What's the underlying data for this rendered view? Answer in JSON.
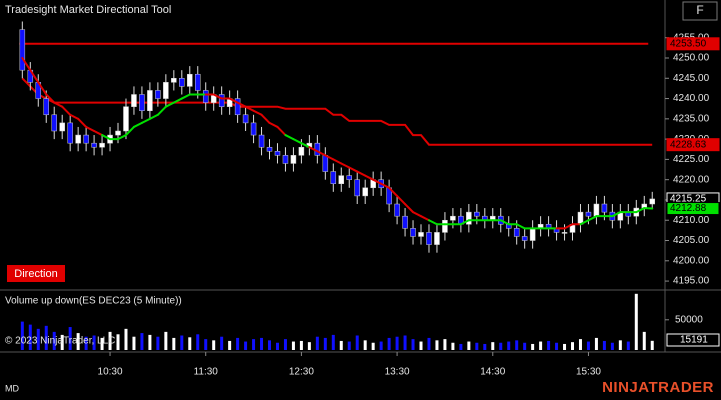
{
  "ui": {
    "title": "Tradesight Market Directional Tool",
    "button": "F",
    "copyright": "© 2023 NinjaTrader, LLC",
    "tag": "MD",
    "logo": "NINJATRADER"
  },
  "chart_data": [
    {
      "type": "candlestick",
      "indicator_label": "Direction",
      "x": [
        575,
        580,
        585,
        590,
        595,
        600,
        605,
        610,
        615,
        620,
        625,
        630,
        635,
        640,
        645,
        650,
        655,
        660,
        665,
        670,
        675,
        680,
        685,
        690,
        695,
        700,
        705,
        710,
        715,
        720,
        725,
        730,
        735,
        740,
        745,
        750,
        755,
        760,
        765,
        770,
        775,
        780,
        785,
        790,
        795,
        800,
        805,
        810,
        815,
        820,
        825,
        830,
        835,
        840,
        845,
        850,
        855,
        860,
        865,
        870,
        875,
        880,
        885,
        890,
        895,
        900,
        905,
        910,
        915,
        920,
        925,
        930,
        935,
        940,
        945,
        950,
        955,
        960,
        965,
        970
      ],
      "open": [
        4257,
        4247,
        4244,
        4240,
        4236,
        4232,
        4234,
        4229,
        4231,
        4229,
        4228,
        4229,
        4231,
        4232,
        4238,
        4241,
        4237,
        4242,
        4240,
        4244,
        4245,
        4243,
        4246,
        4242,
        4239,
        4241,
        4238,
        4240,
        4236,
        4234,
        4231,
        4228,
        4227,
        4226,
        4224,
        4226,
        4228,
        4229,
        4226,
        4222,
        4219,
        4221,
        4220,
        4216,
        4218,
        4220,
        4218,
        4214,
        4211,
        4208,
        4206,
        4207,
        4204,
        4207,
        4210,
        4211,
        4209,
        4212,
        4211,
        4210,
        4211,
        4209,
        4208,
        4206,
        4205,
        4208,
        4209,
        4208,
        4207,
        4207,
        4209,
        4212,
        4211,
        4214,
        4212,
        4210,
        4212,
        4211,
        4213,
        4214
      ],
      "high": [
        4259,
        4249,
        4246,
        4242,
        4238,
        4236,
        4236,
        4233,
        4233,
        4231,
        4231,
        4233,
        4234,
        4240,
        4243,
        4243,
        4244,
        4244,
        4246,
        4247,
        4247,
        4248,
        4248,
        4244,
        4243,
        4243,
        4242,
        4242,
        4238,
        4236,
        4233,
        4230,
        4229,
        4228,
        4228,
        4230,
        4231,
        4231,
        4228,
        4224,
        4223,
        4223,
        4222,
        4220,
        4222,
        4222,
        4220,
        4216,
        4213,
        4210,
        4209,
        4209,
        4209,
        4212,
        4213,
        4213,
        4214,
        4214,
        4213,
        4213,
        4213,
        4211,
        4210,
        4208,
        4210,
        4211,
        4211,
        4210,
        4209,
        4211,
        4214,
        4214,
        4216,
        4216,
        4214,
        4214,
        4214,
        4215,
        4216,
        4217
      ],
      "low": [
        4245,
        4242,
        4238,
        4234,
        4230,
        4230,
        4227,
        4227,
        4227,
        4226,
        4226,
        4227,
        4229,
        4230,
        4236,
        4235,
        4235,
        4238,
        4238,
        4242,
        4241,
        4241,
        4240,
        4237,
        4237,
        4236,
        4236,
        4234,
        4232,
        4229,
        4226,
        4225,
        4224,
        4222,
        4222,
        4224,
        4226,
        4224,
        4220,
        4217,
        4217,
        4218,
        4214,
        4214,
        4216,
        4216,
        4212,
        4209,
        4206,
        4204,
        4204,
        4202,
        4202,
        4205,
        4208,
        4207,
        4207,
        4209,
        4208,
        4208,
        4207,
        4206,
        4204,
        4203,
        4203,
        4206,
        4206,
        4205,
        4205,
        4205,
        4207,
        4209,
        4209,
        4210,
        4208,
        4208,
        4209,
        4209,
        4211,
        4213
      ],
      "close": [
        4247,
        4244,
        4240,
        4236,
        4232,
        4234,
        4229,
        4231,
        4229,
        4228,
        4229,
        4231,
        4232,
        4238,
        4241,
        4237,
        4242,
        4240,
        4244,
        4245,
        4243,
        4246,
        4242,
        4239,
        4241,
        4238,
        4240,
        4236,
        4234,
        4231,
        4228,
        4227,
        4226,
        4224,
        4226,
        4228,
        4229,
        4226,
        4222,
        4219,
        4221,
        4220,
        4216,
        4218,
        4220,
        4218,
        4214,
        4211,
        4208,
        4206,
        4207,
        4204,
        4207,
        4210,
        4211,
        4209,
        4212,
        4211,
        4210,
        4211,
        4209,
        4208,
        4206,
        4205,
        4208,
        4209,
        4208,
        4207,
        4207,
        4209,
        4212,
        4211,
        4214,
        4212,
        4210,
        4212,
        4211,
        4213,
        4214,
        4215.25
      ],
      "up_color": "#ffffff",
      "down_color": "#1010ff",
      "ma": {
        "values": [
          4250,
          4247,
          4244,
          4241,
          4239,
          4238,
          4236,
          4235,
          4233,
          4232,
          4231,
          4230,
          4230,
          4231,
          4233,
          4234,
          4235,
          4236,
          4238,
          4239,
          4240,
          4241,
          4241,
          4241,
          4241,
          4240,
          4240,
          4239,
          4238,
          4237,
          4236,
          4234,
          4233,
          4231,
          4230,
          4229,
          4228,
          4227,
          4226,
          4225,
          4224,
          4223,
          4222,
          4221,
          4220,
          4219,
          4218,
          4216,
          4214,
          4212,
          4211,
          4210,
          4209,
          4209,
          4209,
          4209,
          4210,
          4210,
          4210,
          4210,
          4210,
          4209,
          4209,
          4208,
          4208,
          4208,
          4208,
          4208,
          4208,
          4209,
          4209,
          4210,
          4211,
          4211,
          4211,
          4212,
          4212,
          4212,
          4213,
          4212.88
        ],
        "rising": [
          false,
          false,
          false,
          false,
          false,
          false,
          false,
          false,
          false,
          false,
          false,
          true,
          true,
          true,
          true,
          true,
          true,
          true,
          true,
          true,
          true,
          true,
          true,
          true,
          false,
          false,
          false,
          false,
          false,
          false,
          false,
          false,
          false,
          false,
          true,
          true,
          true,
          false,
          false,
          false,
          false,
          false,
          false,
          false,
          false,
          false,
          false,
          false,
          false,
          false,
          false,
          false,
          true,
          true,
          true,
          true,
          true,
          true,
          true,
          true,
          true,
          true,
          true,
          true,
          true,
          true,
          true,
          true,
          false,
          false,
          false,
          true,
          true,
          true,
          true,
          true,
          true,
          true,
          true,
          true
        ],
        "rising_color": "#00e000",
        "falling_color": "#e00000"
      },
      "stop": {
        "color": "#e00000",
        "values": [
          4245,
          4243,
          4241,
          4240,
          4239,
          4239,
          4239,
          4239,
          4239,
          4239,
          4239,
          4239,
          4239,
          4239,
          4239,
          4239,
          4239,
          4239,
          4239,
          4239,
          4239,
          4239,
          4239,
          4239,
          4239,
          4239,
          4239,
          4238,
          4238,
          4238,
          4238,
          4238,
          4238,
          4237.5,
          4237.5,
          4237.5,
          4237.5,
          4237.5,
          4237.5,
          4236,
          4236,
          4234.5,
          4234.5,
          4234.5,
          4234.5,
          4234.5,
          4233.5,
          4233.5,
          4233.5,
          4231,
          4231,
          4228.63,
          4228.63,
          4228.63,
          4228.63,
          4228.63,
          4228.63,
          4228.63,
          4228.63,
          4228.63,
          4228.63,
          4228.63,
          4228.63,
          4228.63,
          4228.63,
          4228.63,
          4228.63,
          4228.63,
          4228.63,
          4228.63,
          4228.63,
          4228.63,
          4228.63,
          4228.63,
          4228.63,
          4228.63,
          4228.63,
          4228.63,
          4228.63,
          4228.63
        ]
      },
      "level": {
        "value": 4253.5,
        "label": "4253.50",
        "color": "#e00000"
      },
      "xlim": [
        561,
        978
      ],
      "xticks": [
        {
          "value": 630,
          "label": "10:30"
        },
        {
          "value": 690,
          "label": "11:30"
        },
        {
          "value": 750,
          "label": "12:30"
        },
        {
          "value": 810,
          "label": "13:30"
        },
        {
          "value": 870,
          "label": "14:30"
        },
        {
          "value": 930,
          "label": "15:30"
        }
      ],
      "ylim": [
        4192.8,
        4264.3
      ],
      "yticks": [
        {
          "value": 4195,
          "label": "4195.00"
        },
        {
          "value": 4200,
          "label": "4200.00"
        },
        {
          "value": 4205,
          "label": "4205.00"
        },
        {
          "value": 4210,
          "label": "4210.00"
        },
        {
          "value": 4215,
          "label": "4215.00"
        },
        {
          "value": 4220,
          "label": "4220.00"
        },
        {
          "value": 4225,
          "label": "4225.00"
        },
        {
          "value": 4230,
          "label": "4230.00"
        },
        {
          "value": 4235,
          "label": "4235.00"
        },
        {
          "value": 4240,
          "label": "4240.00"
        },
        {
          "value": 4245,
          "label": "4245.00"
        },
        {
          "value": 4250,
          "label": "4250.00"
        },
        {
          "value": 4255,
          "label": "4255.00"
        }
      ],
      "grid": false
    },
    {
      "type": "bar",
      "title": "Volume up down(ES DEC23 (5 Minute))",
      "values": [
        47000,
        42000,
        35000,
        40000,
        30000,
        25000,
        38000,
        28000,
        22000,
        24000,
        20000,
        30000,
        26000,
        35000,
        22000,
        28000,
        25000,
        22000,
        30000,
        20000,
        24000,
        21000,
        26000,
        18000,
        16000,
        22000,
        15000,
        20000,
        14000,
        18000,
        20000,
        16000,
        12000,
        18000,
        14000,
        15000,
        13000,
        22000,
        20000,
        25000,
        15000,
        14000,
        24000,
        16000,
        12000,
        14000,
        20000,
        22000,
        24000,
        18000,
        14000,
        20000,
        16000,
        18000,
        12000,
        10000,
        14000,
        12000,
        10000,
        13000,
        12000,
        14000,
        16000,
        12000,
        10000,
        14000,
        15000,
        12000,
        10000,
        13000,
        18000,
        14000,
        20000,
        15000,
        12000,
        16000,
        14000,
        93000,
        30000,
        15191
      ],
      "ylim": [
        0,
        96000
      ],
      "yticks": [
        50000
      ],
      "grid": false
    }
  ]
}
